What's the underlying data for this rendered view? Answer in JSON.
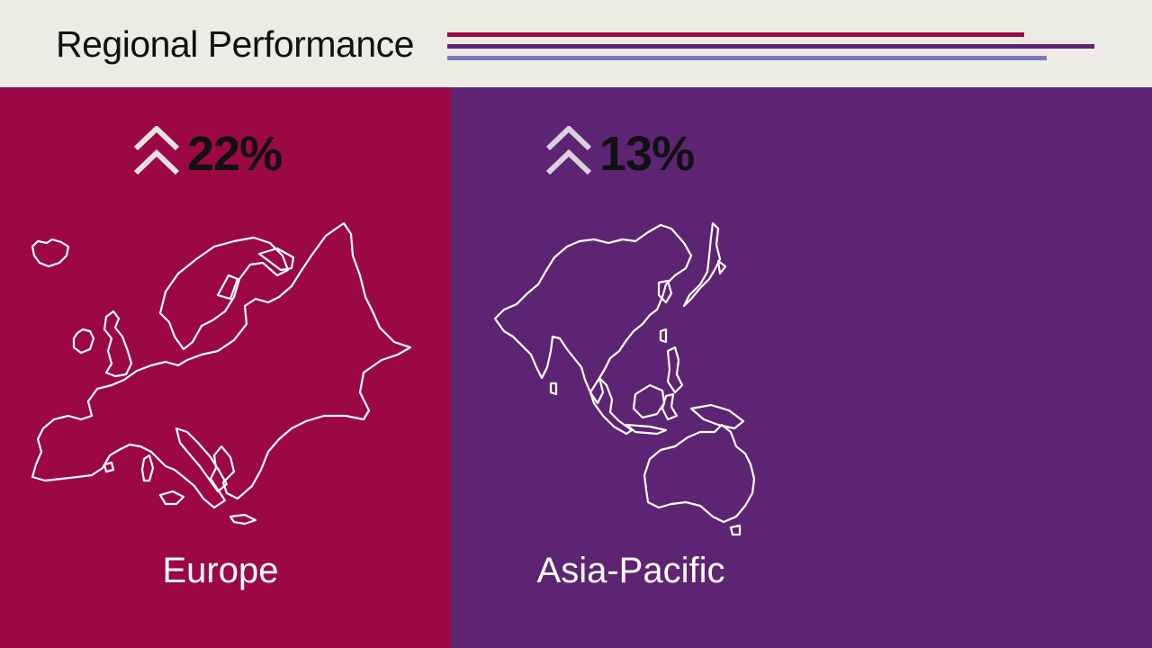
{
  "header": {
    "title": "Regional Performance",
    "lines": [
      {
        "color": "#9b0845"
      },
      {
        "color": "#5e2474"
      },
      {
        "color": "#7e77b5"
      }
    ]
  },
  "panels": [
    {
      "region": "Europe",
      "change": "22%",
      "trend_icon": "double-chevron-up-icon",
      "color": "#9b0845"
    },
    {
      "region": "Asia-Pacific",
      "change": "13%",
      "trend_icon": "double-chevron-up-icon",
      "color": "#5e2474"
    }
  ]
}
